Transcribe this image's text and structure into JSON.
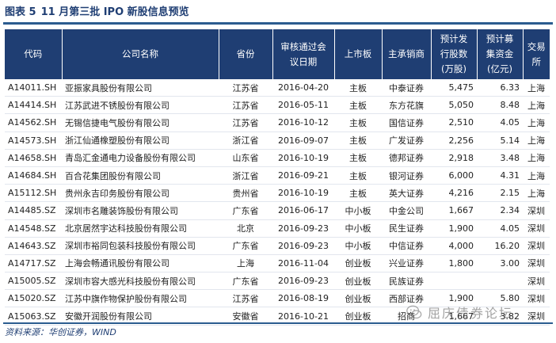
{
  "figure": {
    "label": "图表 5",
    "title": "11 月第三批 IPO 新股信息预览"
  },
  "headers": {
    "code": "代码",
    "name": "公司名称",
    "province": "省份",
    "approval_date": [
      "审核通过会",
      "议日期"
    ],
    "board": "上市板",
    "underwriter": "主承销商",
    "shares": [
      "预计发",
      "行股数",
      "(万股)"
    ],
    "funds": [
      "预计募",
      "集资金",
      "(亿元)"
    ],
    "exchange": [
      "交易",
      "所"
    ]
  },
  "rows": [
    {
      "code": "A14011.SH",
      "name": "亚振家具股份有限公司",
      "province": "江苏省",
      "date": "2016-04-20",
      "board": "主板",
      "underwriter": "中泰证券",
      "shares": "5,475",
      "funds": "6.33",
      "exchange": "上海"
    },
    {
      "code": "A14414.SH",
      "name": "江苏武进不锈股份有限公司",
      "province": "江苏省",
      "date": "2016-05-11",
      "board": "主板",
      "underwriter": "东方花旗",
      "shares": "5,050",
      "funds": "8.48",
      "exchange": "上海"
    },
    {
      "code": "A14562.SH",
      "name": "无锡信捷电气股份有限公司",
      "province": "江苏省",
      "date": "2016-10-12",
      "board": "主板",
      "underwriter": "国信证券",
      "shares": "2,510",
      "funds": "4.05",
      "exchange": "上海"
    },
    {
      "code": "A14573.SH",
      "name": "浙江仙通橡塑股份有限公司",
      "province": "浙江省",
      "date": "2016-09-07",
      "board": "主板",
      "underwriter": "广发证券",
      "shares": "2,256",
      "funds": "5.14",
      "exchange": "上海"
    },
    {
      "code": "A14658.SH",
      "name": "青岛汇金通电力设备股份有限公司",
      "province": "山东省",
      "date": "2016-10-19",
      "board": "主板",
      "underwriter": "德邦证券",
      "shares": "2,918",
      "funds": "3.48",
      "exchange": "上海"
    },
    {
      "code": "A14684.SH",
      "name": "百合花集团股份有限公司",
      "province": "浙江省",
      "date": "2016-09-21",
      "board": "主板",
      "underwriter": "银河证券",
      "shares": "6,000",
      "funds": "4.31",
      "exchange": "上海"
    },
    {
      "code": "A15112.SH",
      "name": "贵州永吉印务股份有限公司",
      "province": "贵州省",
      "date": "2016-10-19",
      "board": "主板",
      "underwriter": "英大证券",
      "shares": "4,216",
      "funds": "2.15",
      "exchange": "上海"
    },
    {
      "code": "A14485.SZ",
      "name": "深圳市名雕装饰股份有限公司",
      "province": "广东省",
      "date": "2016-06-17",
      "board": "中小板",
      "underwriter": "中金公司",
      "shares": "1,667",
      "funds": "2.34",
      "exchange": "深圳"
    },
    {
      "code": "A14548.SZ",
      "name": "北京居然宇达科技股份有限公司",
      "province": "北京",
      "date": "2016-09-23",
      "board": "中小板",
      "underwriter": "民生证券",
      "shares": "1,900",
      "funds": "4.05",
      "exchange": "深圳"
    },
    {
      "code": "A14643.SZ",
      "name": "深圳市裕同包装科技股份有限公司",
      "province": "广东省",
      "date": "2016-09-23",
      "board": "中小板",
      "underwriter": "中信证券",
      "shares": "4,000",
      "funds": "16.20",
      "exchange": "深圳"
    },
    {
      "code": "A14717.SZ",
      "name": "上海会畅通讯股份有限公司",
      "province": "上海",
      "date": "2016-11-04",
      "board": "创业板",
      "underwriter": "兴业证券",
      "shares": "1,800",
      "funds": "3.00",
      "exchange": "深圳"
    },
    {
      "code": "A15005.SZ",
      "name": "深圳市容大感光科技股份有限公司",
      "province": "广东省",
      "date": "2016-09-23",
      "board": "创业板",
      "underwriter": "民族证券",
      "shares": "",
      "funds": "",
      "exchange": "深圳"
    },
    {
      "code": "A15020.SZ",
      "name": "江苏中旗作物保护股份有限公司",
      "province": "江苏省",
      "date": "2016-08-19",
      "board": "创业板",
      "underwriter": "西部证券",
      "shares": "1,900",
      "funds": "5.80",
      "exchange": "深圳"
    },
    {
      "code": "A15063.SZ",
      "name": "安徽开润股份有限公司",
      "province": "安徽省",
      "date": "2016-10-21",
      "board": "创业板",
      "underwriter": "招商",
      "shares": "1,667",
      "funds": "3.82",
      "exchange": "深圳"
    }
  ],
  "source": "资料来源：华创证券，WIND",
  "watermark": {
    "text": "屈庆债券论坛",
    "icon": "wechat-icon"
  },
  "colors": {
    "header_bg": "#1f3e73",
    "rule": "#2b5c8f",
    "title": "#1f3e73"
  }
}
